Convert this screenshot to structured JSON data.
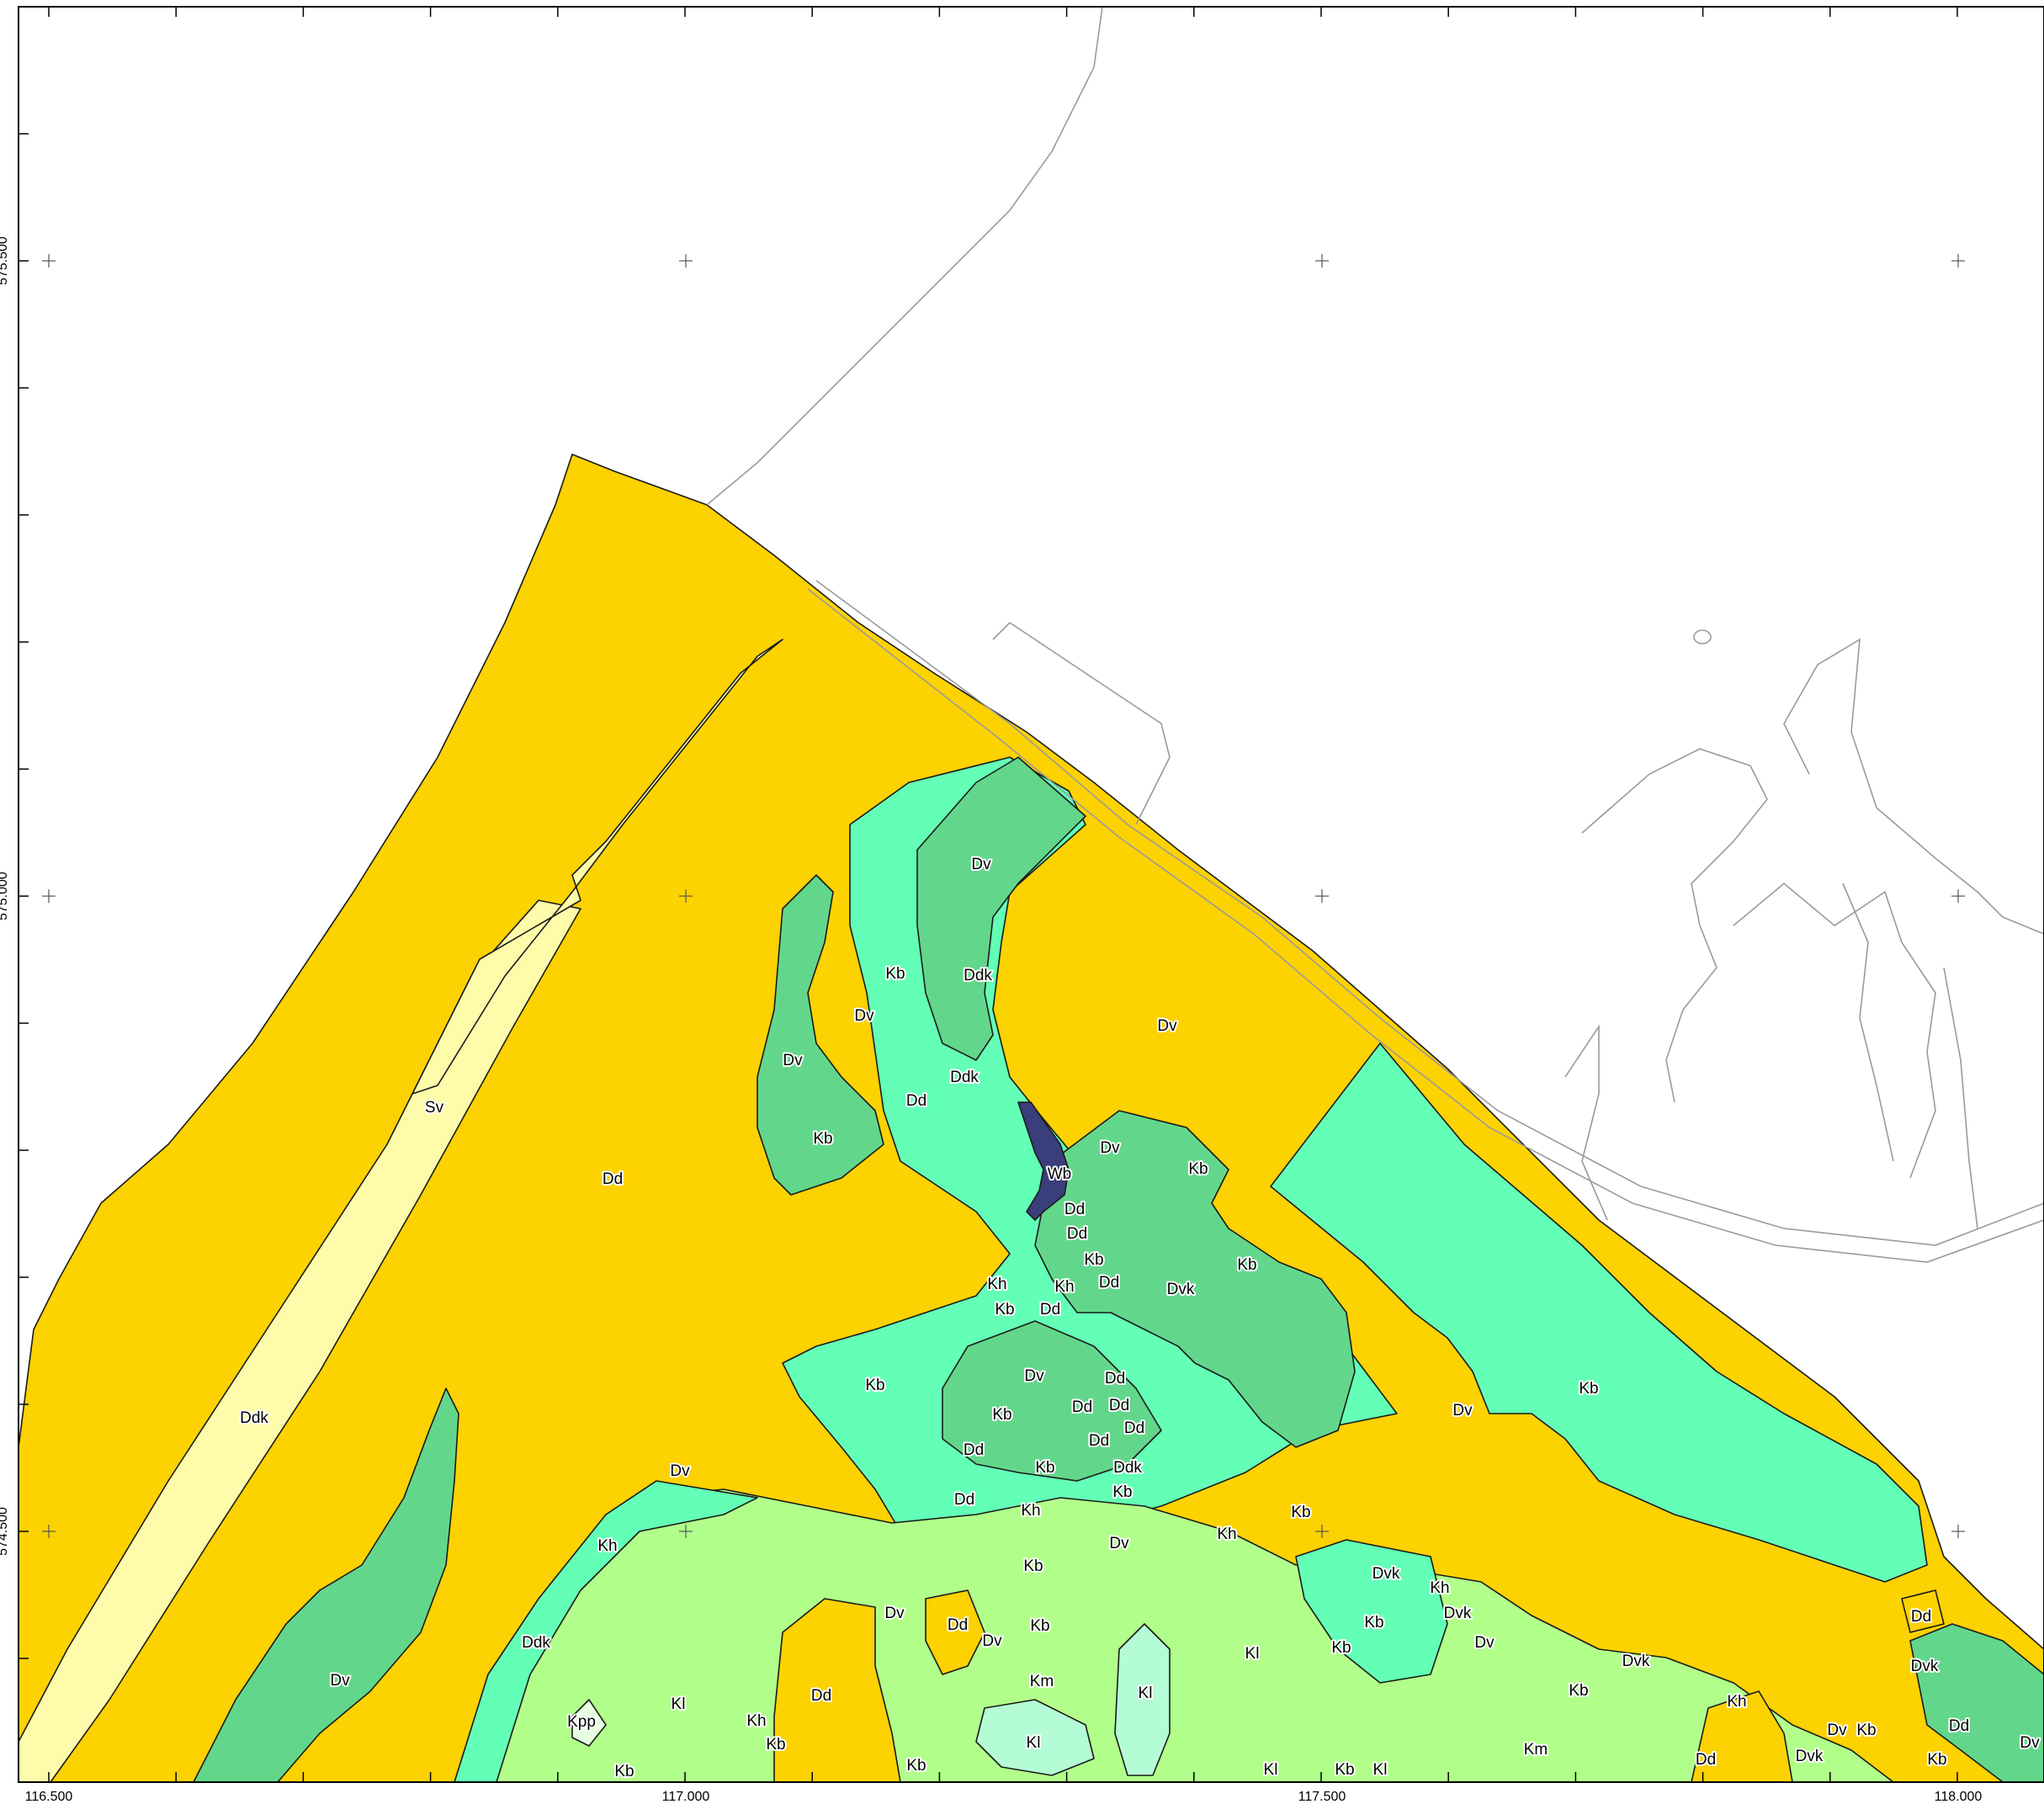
{
  "map": {
    "x_axis_ticks": [
      "116.500",
      "117.000",
      "117.500",
      "118.000"
    ],
    "y_axis_ticks": [
      "575.500",
      "575.000",
      "574.500"
    ],
    "colors": {
      "Dd": "#fcd201",
      "Ddk": "#fcd201",
      "Sv": "#fefcaa",
      "Dv": "#62d78b",
      "Dvk": "#62d78b",
      "Kb": "#63ffb6",
      "Kh": "#a7c768",
      "Km": "#b1ff8a",
      "Kl": "#b4fcd6",
      "Kpp": "#e8ffe0",
      "Wb": "#3a3f7c"
    },
    "units": [
      {
        "code": "Sv"
      },
      {
        "code": "Dd"
      },
      {
        "code": "Ddk"
      },
      {
        "code": "Dv"
      },
      {
        "code": "Dvk"
      },
      {
        "code": "Kb"
      },
      {
        "code": "Kh"
      },
      {
        "code": "Km"
      },
      {
        "code": "Kl"
      },
      {
        "code": "Kpp"
      },
      {
        "code": "Wb"
      }
    ]
  }
}
